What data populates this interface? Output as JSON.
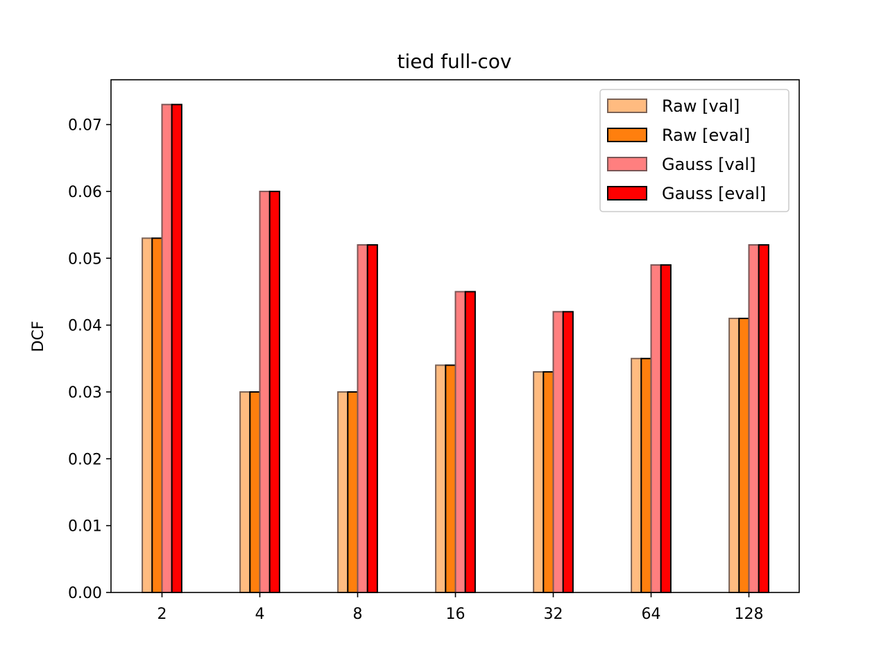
{
  "chart_data": {
    "type": "bar",
    "title": "tied full-cov",
    "xlabel": "",
    "ylabel": "DCF",
    "categories": [
      "2",
      "4",
      "8",
      "16",
      "32",
      "64",
      "128"
    ],
    "series": [
      {
        "name": "Raw [val]",
        "values": [
          0.053,
          0.03,
          0.03,
          0.034,
          0.033,
          0.035,
          0.041
        ],
        "fill": "#ffbb80",
        "stroke": "#7a6256"
      },
      {
        "name": "Raw [eval]",
        "values": [
          0.053,
          0.03,
          0.03,
          0.034,
          0.033,
          0.035,
          0.041
        ],
        "fill": "#ff7f0e",
        "stroke": "#000000"
      },
      {
        "name": "Gauss [val]",
        "values": [
          0.073,
          0.06,
          0.052,
          0.045,
          0.042,
          0.049,
          0.052
        ],
        "fill": "#ff7f7f",
        "stroke": "#7a5656"
      },
      {
        "name": "Gauss [eval]",
        "values": [
          0.073,
          0.06,
          0.052,
          0.045,
          0.042,
          0.049,
          0.052
        ],
        "fill": "#ff0000",
        "stroke": "#000000"
      }
    ],
    "ylim": [
      0,
      0.0767
    ],
    "yticks": [
      "0.00",
      "0.01",
      "0.02",
      "0.03",
      "0.04",
      "0.05",
      "0.06",
      "0.07"
    ],
    "grid": false,
    "legend_position": "top-right"
  }
}
